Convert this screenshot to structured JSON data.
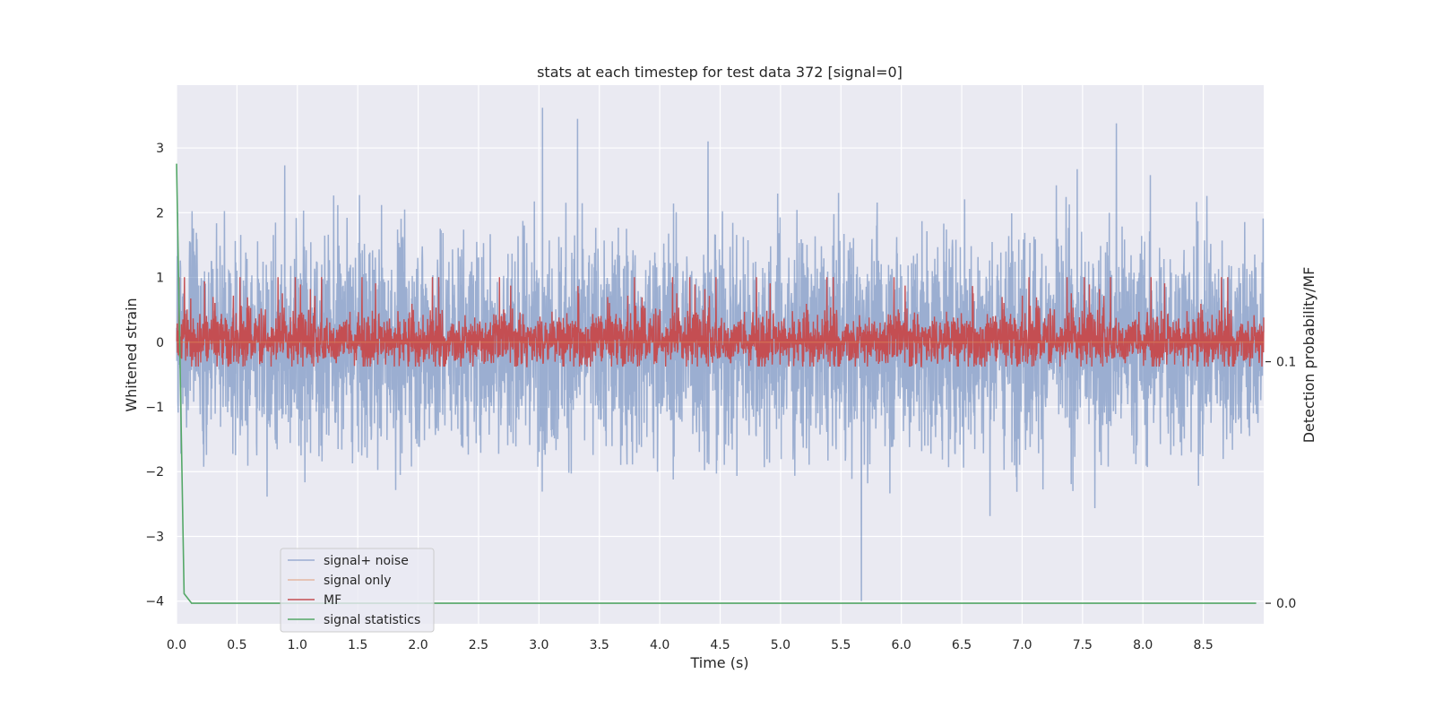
{
  "chart_data": {
    "type": "line",
    "title": "stats at each timestep for test data 372 [signal=0]",
    "xlabel": "Time (s)",
    "ylabel": "Whitened strain",
    "y2label": "Detection probability/MF",
    "xlim": [
      0.0,
      9.0
    ],
    "ylim": [
      -4.35,
      3.97
    ],
    "y2lim": [
      -0.0085,
      0.2145
    ],
    "xticks": [
      "0.0",
      "0.5",
      "1.0",
      "1.5",
      "2.0",
      "2.5",
      "3.0",
      "3.5",
      "4.0",
      "4.5",
      "5.0",
      "5.5",
      "6.0",
      "6.5",
      "7.0",
      "7.5",
      "8.0",
      "8.5"
    ],
    "yticks": [
      "3",
      "2",
      "1",
      "0",
      "−1",
      "−2",
      "−3",
      "−4"
    ],
    "y2ticks": [
      "0.1",
      "0.0"
    ],
    "grid": true,
    "legend_position": "lower-left",
    "series": [
      {
        "name": "signal+ noise",
        "color": "#4c72b0",
        "axis": "left",
        "description": "noise-dominated whitened strain, roughly zero-mean, std ~0.85",
        "peaks_x": [
          3.03,
          3.32,
          4.4,
          7.78,
          5.67
        ],
        "peaks_y": [
          3.62,
          3.45,
          3.1,
          3.38,
          -4.0
        ],
        "range_y": [
          -4.0,
          3.62
        ]
      },
      {
        "name": "signal only",
        "color": "#dd8452",
        "axis": "left",
        "x": [
          0.0,
          9.0
        ],
        "y": [
          0.0,
          0.0
        ]
      },
      {
        "name": "MF",
        "color": "#c44e52",
        "axis": "right",
        "description": "matched-filter output fluctuating between about 0.1 and 0.125",
        "range_y2": [
          0.1,
          0.125
        ]
      },
      {
        "name": "signal statistics",
        "color": "#55a868",
        "axis": "right",
        "x": [
          0.0,
          0.0625,
          0.125,
          8.9375
        ],
        "y": [
          0.182,
          0.004,
          0.0,
          0.0
        ]
      }
    ]
  },
  "legend": {
    "items": [
      {
        "label": "signal+ noise",
        "color": "#4c72b0"
      },
      {
        "label": "signal only",
        "color": "#dd8452"
      },
      {
        "label": "MF",
        "color": "#c44e52"
      },
      {
        "label": "signal statistics",
        "color": "#55a868"
      }
    ]
  }
}
